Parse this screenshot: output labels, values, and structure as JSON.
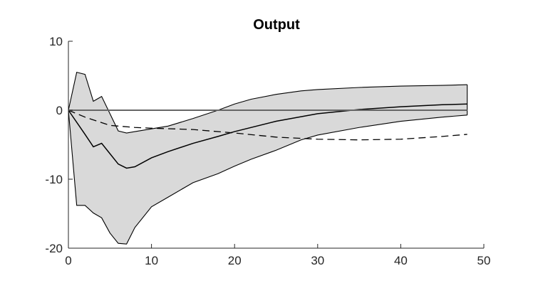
{
  "chart_data": {
    "type": "line",
    "title": "Output",
    "xlabel": "",
    "ylabel": "",
    "xlim": [
      0,
      50
    ],
    "ylim": [
      -20,
      10
    ],
    "xticks": [
      0,
      10,
      20,
      30,
      40,
      50
    ],
    "yticks": [
      -20,
      -10,
      0,
      10
    ],
    "grid": false,
    "band": {
      "x": [
        0,
        1,
        2,
        3,
        4,
        5,
        6,
        7,
        8,
        10,
        12,
        15,
        18,
        20,
        22,
        25,
        28,
        30,
        35,
        40,
        45,
        48
      ],
      "upper": [
        0,
        5.5,
        5.2,
        1.3,
        2.0,
        -0.5,
        -3.0,
        -3.3,
        -3.1,
        -2.7,
        -2.3,
        -1.2,
        0.0,
        0.9,
        1.6,
        2.3,
        2.8,
        3.0,
        3.3,
        3.5,
        3.6,
        3.7
      ],
      "lower": [
        0,
        -13.8,
        -13.8,
        -14.9,
        -15.6,
        -17.8,
        -19.3,
        -19.4,
        -17.0,
        -14.0,
        -12.6,
        -10.5,
        -9.2,
        -8.1,
        -7.1,
        -5.8,
        -4.3,
        -3.6,
        -2.5,
        -1.6,
        -1.0,
        -0.7
      ],
      "color": "#d9d9d9"
    },
    "series": [
      {
        "style": "solid",
        "color": "#000000",
        "x": [
          0,
          2,
          3,
          4,
          5,
          6,
          7,
          8,
          10,
          12,
          15,
          18,
          20,
          25,
          30,
          35,
          40,
          45,
          48
        ],
        "values": [
          0,
          -3.5,
          -5.3,
          -4.8,
          -6.3,
          -7.8,
          -8.4,
          -8.2,
          -6.9,
          -6.0,
          -4.8,
          -3.8,
          -3.1,
          -1.6,
          -0.5,
          0.1,
          0.5,
          0.8,
          0.9
        ]
      },
      {
        "style": "dashed",
        "color": "#000000",
        "x": [
          0,
          2,
          5,
          8,
          10,
          15,
          20,
          25,
          30,
          35,
          40,
          45,
          48
        ],
        "values": [
          0,
          -1.0,
          -2.2,
          -2.5,
          -2.6,
          -2.8,
          -3.3,
          -3.9,
          -4.2,
          -4.3,
          -4.2,
          -3.8,
          -3.5
        ]
      },
      {
        "style": "solid",
        "color": "#666666",
        "x": [
          0,
          48
        ],
        "values": [
          0,
          0
        ]
      }
    ]
  }
}
